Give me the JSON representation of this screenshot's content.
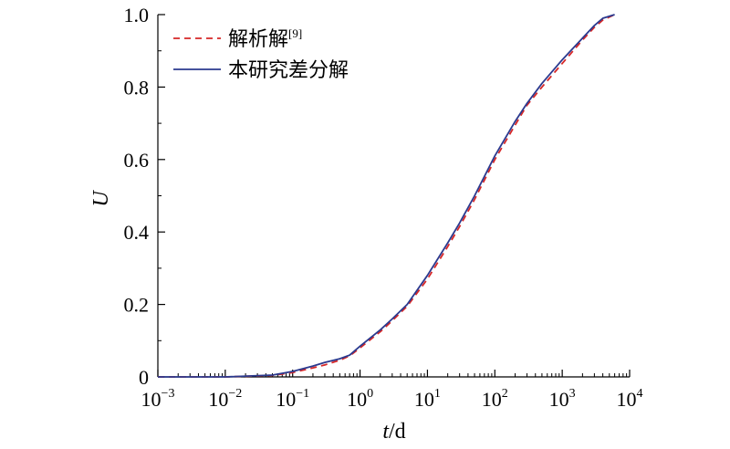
{
  "chart_data": {
    "type": "line",
    "title": "",
    "xlabel": {
      "var": "t",
      "unit": "/d"
    },
    "ylabel": "U",
    "x_scale": "log",
    "xlim": [
      0.001,
      10000
    ],
    "ylim": [
      0,
      1.0
    ],
    "x_ticks": [
      {
        "base": "10",
        "exp": "−3",
        "value": 0.001
      },
      {
        "base": "10",
        "exp": "−2",
        "value": 0.01
      },
      {
        "base": "10",
        "exp": "−1",
        "value": 0.1
      },
      {
        "base": "10",
        "exp": "0",
        "value": 1
      },
      {
        "base": "10",
        "exp": "1",
        "value": 10
      },
      {
        "base": "10",
        "exp": "2",
        "value": 100
      },
      {
        "base": "10",
        "exp": "3",
        "value": 1000
      },
      {
        "base": "10",
        "exp": "4",
        "value": 10000
      }
    ],
    "y_ticks": [
      "0",
      "0.2",
      "0.4",
      "0.6",
      "0.8",
      "1.0"
    ],
    "y_tick_values": [
      0,
      0.2,
      0.4,
      0.6,
      0.8,
      1.0
    ],
    "grid": false,
    "legend_position": "top-left",
    "series": [
      {
        "name": "解析解",
        "name_sup": "[9]",
        "color": "#d62728",
        "dash": "dashed",
        "x": [
          0.001,
          0.01,
          0.05,
          0.1,
          0.2,
          0.3,
          0.5,
          0.7,
          1,
          2,
          3,
          5,
          10,
          20,
          30,
          50,
          100,
          200,
          300,
          500,
          1000,
          2000,
          3000,
          4000,
          6000
        ],
        "y": [
          0,
          0,
          0.004,
          0.012,
          0.025,
          0.033,
          0.046,
          0.058,
          0.08,
          0.125,
          0.155,
          0.195,
          0.27,
          0.36,
          0.415,
          0.49,
          0.6,
          0.695,
          0.75,
          0.8,
          0.865,
          0.93,
          0.965,
          0.985,
          1.0
        ]
      },
      {
        "name": "本研究差分解",
        "color": "#2b3a8f",
        "dash": "solid",
        "x": [
          0.001,
          0.01,
          0.05,
          0.1,
          0.2,
          0.3,
          0.5,
          0.7,
          1,
          2,
          3,
          5,
          10,
          20,
          30,
          50,
          100,
          200,
          300,
          500,
          1000,
          2000,
          3000,
          4000,
          6000
        ],
        "y": [
          0,
          0,
          0.005,
          0.015,
          0.03,
          0.04,
          0.05,
          0.06,
          0.085,
          0.13,
          0.16,
          0.2,
          0.28,
          0.37,
          0.425,
          0.5,
          0.61,
          0.705,
          0.755,
          0.81,
          0.875,
          0.935,
          0.97,
          0.99,
          1.0
        ]
      }
    ]
  }
}
